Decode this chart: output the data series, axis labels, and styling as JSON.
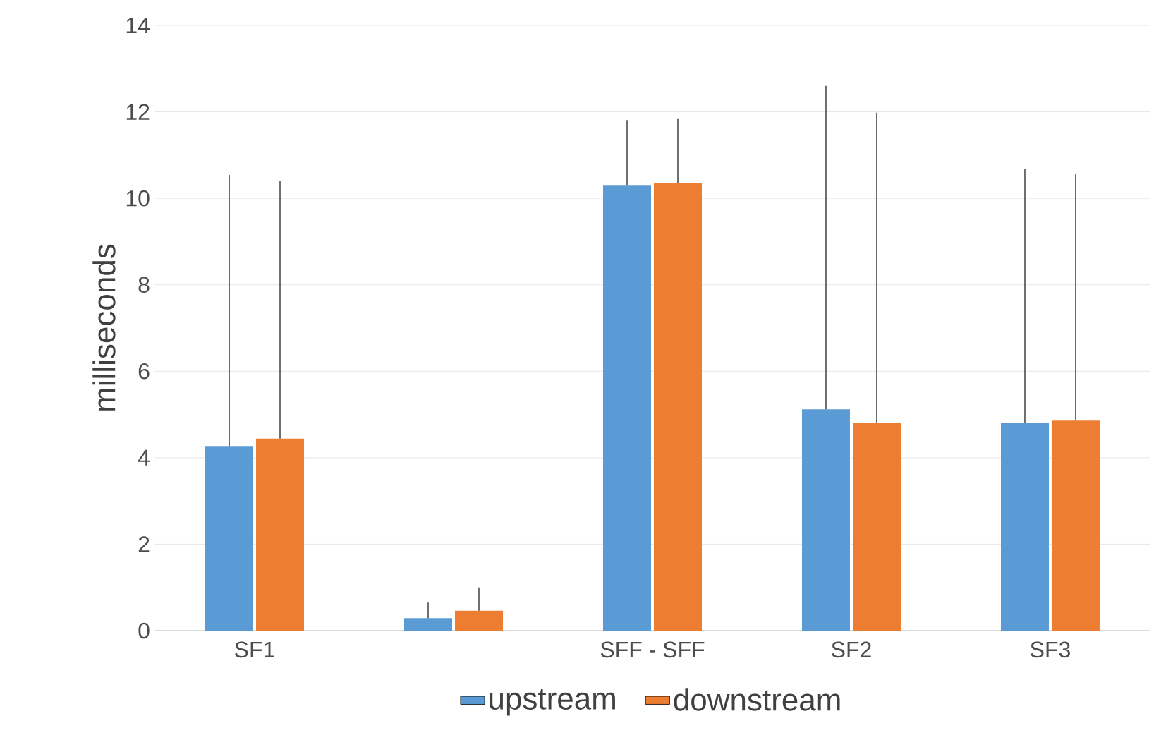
{
  "chart_data": {
    "type": "bar",
    "ylabel": "milliseconds",
    "categories": [
      "SF1",
      null,
      "SFF - SFF",
      "SF2",
      "SF3"
    ],
    "series": [
      {
        "name": "upstream",
        "color": "#5b9bd5",
        "values": [
          4.27,
          0.29,
          10.31,
          5.12,
          4.8
        ],
        "errors": [
          [
            4.27,
            10.54
          ],
          [
            0.29,
            0.65
          ],
          [
            10.31,
            11.81
          ],
          [
            5.12,
            12.6
          ],
          [
            4.8,
            10.67
          ]
        ]
      },
      {
        "name": "downstream",
        "color": "#ed7d31",
        "values": [
          4.44,
          0.46,
          10.35,
          4.8,
          4.86
        ],
        "errors": [
          [
            4.44,
            10.41
          ],
          [
            0.46,
            1.0
          ],
          [
            10.35,
            11.85
          ],
          [
            4.8,
            11.98
          ],
          [
            4.86,
            10.57
          ]
        ]
      }
    ],
    "ylim": [
      0,
      14
    ],
    "yticks": [
      0,
      2,
      4,
      6,
      8,
      10,
      12,
      14
    ],
    "grid": "y",
    "legend": "bottom"
  }
}
